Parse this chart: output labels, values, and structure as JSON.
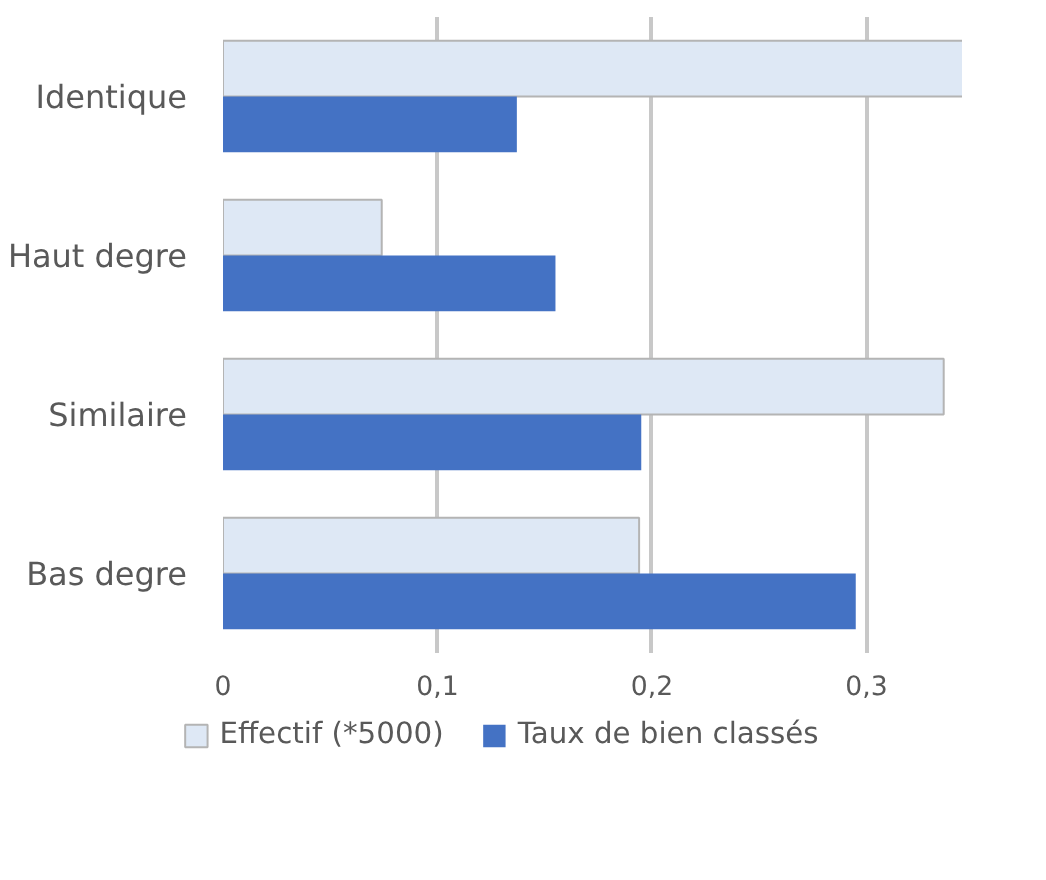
{
  "chart_data": {
    "type": "bar",
    "orientation": "horizontal",
    "categories": [
      "Identique",
      "Haut degre",
      "Similaire",
      "Bas degre"
    ],
    "series": [
      {
        "name": "Effectif (*5000)",
        "color": "#dee8f5",
        "values": [
          0.345,
          0.074,
          0.336,
          0.194
        ]
      },
      {
        "name": "Taux de bien classés",
        "color": "#4472c4",
        "values": [
          0.137,
          0.155,
          0.195,
          0.295
        ]
      }
    ],
    "xlim": [
      0,
      0.345
    ],
    "xticks": [
      0,
      {
        "value": 0.1,
        "label": "0,1"
      },
      {
        "value": 0.2,
        "label": "0,2"
      },
      {
        "value": 0.3,
        "label": "0,3"
      }
    ],
    "grid": "x",
    "legend": "bottom"
  }
}
